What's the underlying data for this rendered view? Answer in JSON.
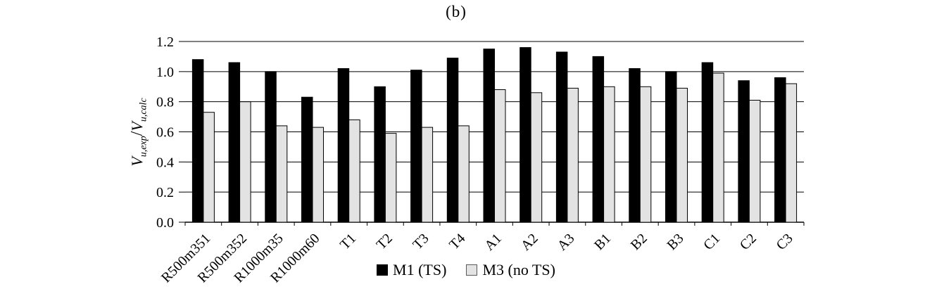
{
  "title": "(b)",
  "chart_data": {
    "type": "bar",
    "categories": [
      "R500m351",
      "R500m352",
      "R1000m35",
      "R1000m60",
      "T1",
      "T2",
      "T3",
      "T4",
      "A1",
      "A2",
      "A3",
      "B1",
      "B2",
      "B3",
      "C1",
      "C2",
      "C3"
    ],
    "series": [
      {
        "name": "M1 (TS)",
        "color": "#000000",
        "values": [
          1.08,
          1.06,
          1.0,
          0.83,
          1.02,
          0.9,
          1.01,
          1.09,
          1.15,
          1.16,
          1.13,
          1.1,
          1.02,
          1.0,
          1.06,
          0.94,
          0.96
        ]
      },
      {
        "name": "M3 (no TS)",
        "color": "#e3e3e3",
        "values": [
          0.73,
          0.8,
          0.64,
          0.63,
          0.68,
          0.59,
          0.63,
          0.64,
          0.88,
          0.86,
          0.89,
          0.9,
          0.9,
          0.89,
          0.99,
          0.81,
          0.92
        ]
      }
    ],
    "title": "(b)",
    "xlabel": "",
    "ylabel": {
      "num_var": "V",
      "num_sub": "u,exp",
      "slash": "/",
      "den_var": "V",
      "den_sub": "u,calc"
    },
    "ylim": [
      0,
      1.2
    ],
    "yticks": [
      "0.0",
      "0.2",
      "0.4",
      "0.6",
      "0.8",
      "1.0",
      "1.2"
    ],
    "grid": true,
    "legend_position": "bottom",
    "x_label_rotation_deg": -45
  },
  "colors": {
    "axis": "#000000",
    "gridline": "#000000",
    "bar_border": "#000000",
    "legend_swatch_border": "#595959"
  }
}
